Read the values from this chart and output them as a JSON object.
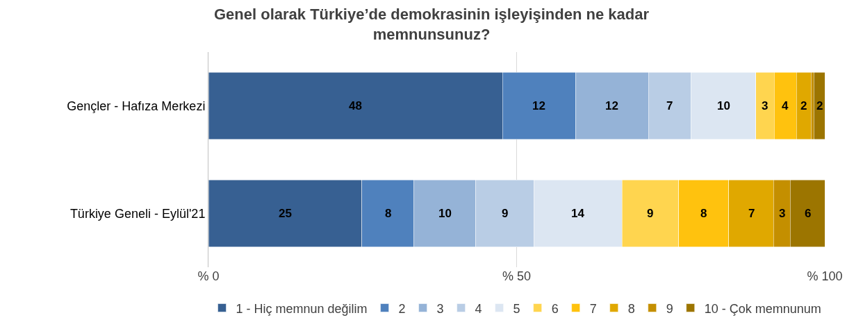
{
  "chart_data": {
    "type": "bar",
    "orientation": "horizontal",
    "stacked": true,
    "title": "Genel olarak Türkiye’de demokrasinin işleyişinden ne kadar\nmemnunsunuz?",
    "categories": [
      "Gençler - Hafıza Merkezi",
      "Türkiye Geneli - Eylül'21"
    ],
    "xlim": [
      0,
      100
    ],
    "xticks": [
      {
        "value": 0,
        "label": "% 0"
      },
      {
        "value": 50,
        "label": "% 50"
      },
      {
        "value": 100,
        "label": "% 100"
      }
    ],
    "grid": "x",
    "legend": "bottom",
    "series": [
      {
        "name": "1 - Hiç memnun değilim",
        "color": "#376092",
        "values": [
          47.7,
          24.9
        ],
        "value_labels": [
          "48",
          "25"
        ]
      },
      {
        "name": "2",
        "color": "#4f81bd",
        "values": [
          11.9,
          8.4
        ],
        "value_labels": [
          "12",
          "8"
        ]
      },
      {
        "name": "3",
        "color": "#95b3d7",
        "values": [
          11.8,
          10.1
        ],
        "value_labels": [
          "12",
          "10"
        ]
      },
      {
        "name": "4",
        "color": "#b9cde5",
        "values": [
          6.9,
          9.4
        ],
        "value_labels": [
          "7",
          "9"
        ]
      },
      {
        "name": "5",
        "color": "#dce6f2",
        "values": [
          10.5,
          14.3
        ],
        "value_labels": [
          "10",
          "14"
        ]
      },
      {
        "name": "6",
        "color": "#ffd54f",
        "values": [
          3.0,
          9.2
        ],
        "value_labels": [
          "3",
          "9"
        ]
      },
      {
        "name": "7",
        "color": "#ffc20e",
        "values": [
          3.6,
          8.1
        ],
        "value_labels": [
          "4",
          "8"
        ]
      },
      {
        "name": "8",
        "color": "#e0a800",
        "values": [
          2.4,
          7.3
        ],
        "value_labels": [
          "2",
          "7"
        ]
      },
      {
        "name": "9",
        "color": "#c48f00",
        "values": [
          0.4,
          2.7
        ],
        "value_labels": [
          null,
          "3"
        ]
      },
      {
        "name": "10 - Çok memnunum",
        "color": "#9c7500",
        "values": [
          1.8,
          5.6
        ],
        "value_labels": [
          "2",
          "6"
        ]
      }
    ]
  }
}
